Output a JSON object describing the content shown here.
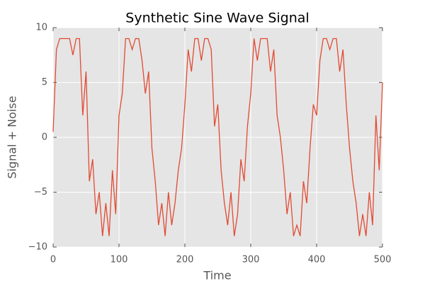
{
  "chart_data": {
    "type": "line",
    "title": "Synthetic Sine Wave Signal",
    "xlabel": "Time",
    "ylabel": "Signal + Noise",
    "x": [
      0,
      5,
      10,
      15,
      20,
      25,
      30,
      35,
      40,
      45,
      50,
      55,
      60,
      65,
      70,
      75,
      80,
      85,
      90,
      95,
      100,
      105,
      110,
      115,
      120,
      125,
      130,
      135,
      140,
      145,
      150,
      155,
      160,
      165,
      170,
      175,
      180,
      185,
      190,
      195,
      200,
      205,
      210,
      215,
      220,
      225,
      230,
      235,
      240,
      245,
      250,
      255,
      260,
      265,
      270,
      275,
      280,
      285,
      290,
      295,
      300,
      305,
      310,
      315,
      320,
      325,
      330,
      335,
      340,
      345,
      350,
      355,
      360,
      365,
      370,
      375,
      380,
      385,
      390,
      395,
      400,
      405,
      410,
      415,
      420,
      425,
      430,
      435,
      440,
      445,
      450,
      455,
      460,
      465,
      470,
      475,
      480,
      485,
      490,
      495,
      500
    ],
    "series": [
      {
        "color": "#e24a33",
        "values": [
          0.5,
          8,
          9,
          9,
          9,
          9,
          7.5,
          9,
          9,
          2,
          6,
          -4,
          -2,
          -7,
          -5,
          -9,
          -6,
          -9,
          -3,
          -7,
          2,
          4,
          9,
          9,
          8,
          9,
          9,
          7,
          4,
          6,
          -1,
          -4,
          -8,
          -6,
          -9,
          -5,
          -8,
          -6,
          -3,
          -1,
          3,
          8,
          6,
          9,
          9,
          7,
          9,
          9,
          8,
          1,
          3,
          -3,
          -6,
          -8,
          -5,
          -9,
          -7,
          -2,
          -4,
          1,
          4,
          9,
          7,
          9,
          9,
          9,
          6,
          8,
          2,
          0,
          -3,
          -7,
          -5,
          -9,
          -8,
          -9,
          -4,
          -6,
          -1,
          3,
          2,
          7,
          9,
          9,
          8,
          9,
          9,
          6,
          8,
          3,
          -1,
          -4,
          -6,
          -9,
          -7,
          -9,
          -5,
          -8,
          2,
          -3,
          5
        ]
      }
    ],
    "xlim": [
      0,
      500
    ],
    "ylim": [
      -10,
      10
    ],
    "xticks": [
      0,
      100,
      200,
      300,
      400,
      500
    ],
    "yticks": [
      {
        "value": -10,
        "label": "−10"
      },
      {
        "value": -5,
        "label": "−5"
      },
      0,
      5,
      10
    ],
    "grid": true
  }
}
